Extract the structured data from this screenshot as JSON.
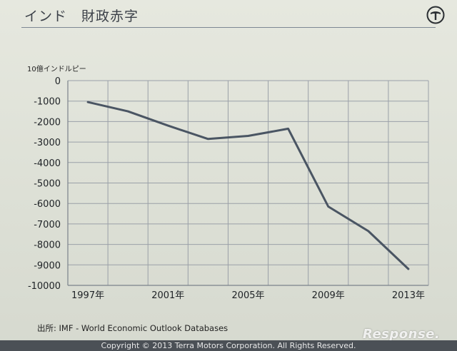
{
  "slide": {
    "title": "インド　財政赤字",
    "source": "出所: IMF - World Economic Outlook Databases",
    "copyright": "Copyright © 2013 Terra Motors Corporation. All Rights Reserved.",
    "watermark": "Response."
  },
  "chart_data": {
    "type": "line",
    "title": "",
    "ylabel": "10億インドルピー",
    "xlabel": "",
    "x": [
      1997,
      1999,
      2001,
      2003,
      2005,
      2007,
      2009,
      2011,
      2013
    ],
    "series": [
      {
        "values": [
          -1050,
          -1500,
          -2200,
          -2850,
          -2700,
          -2350,
          -6150,
          -7350,
          -9200
        ]
      }
    ],
    "xlim": [
      1996,
      2014
    ],
    "ylim": [
      -10000,
      0
    ],
    "yticks": [
      0,
      -1000,
      -2000,
      -3000,
      -4000,
      -5000,
      -6000,
      -7000,
      -8000,
      -9000,
      -10000
    ],
    "ytick_labels": [
      "0",
      "-1000",
      "-2000",
      "-3000",
      "-4000",
      "-5000",
      "-6000",
      "-7000",
      "-8000",
      "-9000",
      "-10000"
    ],
    "xticks": [
      1997,
      2001,
      2005,
      2009,
      2013
    ],
    "xtick_labels": [
      "1997年",
      "2001年",
      "2005年",
      "2009年",
      "2013年"
    ],
    "grid": true,
    "line_color": "#4a5563",
    "grid_color": "#9aa0a8"
  }
}
